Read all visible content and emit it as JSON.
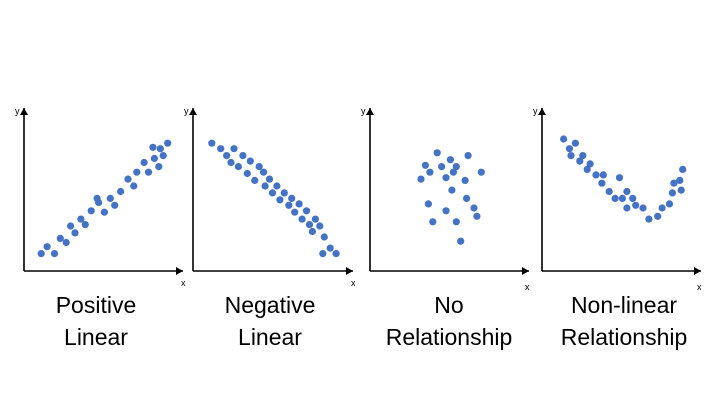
{
  "colors": {
    "point": "#4472C4",
    "axis": "#000000",
    "background": "#ffffff"
  },
  "chart_data": [
    {
      "type": "scatter",
      "title": "Positive Linear",
      "title_lines": [
        "Positive",
        "Linear"
      ],
      "xlabel": "x",
      "ylabel": "y",
      "grid": false,
      "xlim": [
        0,
        10
      ],
      "ylim": [
        0,
        10
      ],
      "points": [
        [
          0.9,
          0.9
        ],
        [
          1.3,
          1.4
        ],
        [
          1.8,
          0.9
        ],
        [
          2.2,
          2.0
        ],
        [
          2.6,
          1.7
        ],
        [
          2.9,
          2.9
        ],
        [
          3.2,
          2.4
        ],
        [
          3.6,
          3.4
        ],
        [
          3.9,
          3.0
        ],
        [
          4.3,
          4.0
        ],
        [
          4.7,
          4.9
        ],
        [
          4.8,
          4.6
        ],
        [
          5.2,
          3.9
        ],
        [
          5.6,
          4.9
        ],
        [
          5.9,
          4.4
        ],
        [
          6.3,
          5.4
        ],
        [
          6.8,
          6.3
        ],
        [
          7.2,
          5.8
        ],
        [
          7.4,
          6.8
        ],
        [
          7.9,
          7.5
        ],
        [
          8.2,
          6.8
        ],
        [
          8.6,
          7.8
        ],
        [
          8.9,
          7.2
        ],
        [
          8.5,
          8.6
        ],
        [
          9.0,
          8.5
        ],
        [
          9.2,
          8.0
        ],
        [
          9.5,
          8.9
        ]
      ]
    },
    {
      "type": "scatter",
      "title": "Negative Linear",
      "title_lines": [
        "Negative",
        "Linear"
      ],
      "xlabel": "x",
      "ylabel": "y",
      "grid": false,
      "xlim": [
        0,
        10
      ],
      "ylim": [
        0,
        10
      ],
      "points": [
        [
          1.0,
          8.9
        ],
        [
          1.6,
          8.5
        ],
        [
          2.0,
          8.0
        ],
        [
          2.3,
          7.5
        ],
        [
          2.5,
          8.5
        ],
        [
          2.8,
          7.2
        ],
        [
          3.1,
          8.0
        ],
        [
          3.4,
          6.7
        ],
        [
          3.6,
          7.6
        ],
        [
          3.9,
          6.2
        ],
        [
          4.2,
          7.2
        ],
        [
          4.5,
          6.8
        ],
        [
          4.6,
          5.8
        ],
        [
          4.9,
          6.3
        ],
        [
          5.1,
          5.3
        ],
        [
          5.4,
          5.8
        ],
        [
          5.6,
          4.8
        ],
        [
          5.9,
          5.3
        ],
        [
          6.2,
          4.4
        ],
        [
          6.4,
          4.9
        ],
        [
          6.6,
          3.9
        ],
        [
          6.9,
          4.5
        ],
        [
          7.1,
          3.4
        ],
        [
          7.4,
          4.0
        ],
        [
          7.6,
          3.0
        ],
        [
          7.8,
          2.5
        ],
        [
          8.0,
          3.4
        ],
        [
          8.3,
          2.9
        ],
        [
          8.6,
          2.1
        ],
        [
          8.5,
          0.9
        ],
        [
          9.0,
          1.3
        ],
        [
          9.4,
          0.9
        ]
      ]
    },
    {
      "type": "scatter",
      "title": "No Relationship",
      "title_lines": [
        "No",
        "Relationship"
      ],
      "xlabel": "x",
      "ylabel": "y",
      "grid": false,
      "xlim": [
        0,
        10
      ],
      "ylim": [
        0,
        10
      ],
      "points": [
        [
          3.2,
          6.3
        ],
        [
          3.5,
          7.3
        ],
        [
          3.8,
          6.8
        ],
        [
          3.7,
          4.5
        ],
        [
          4.0,
          3.2
        ],
        [
          4.3,
          8.2
        ],
        [
          4.6,
          7.2
        ],
        [
          4.9,
          6.4
        ],
        [
          4.9,
          4.0
        ],
        [
          5.2,
          7.7
        ],
        [
          5.3,
          5.5
        ],
        [
          5.4,
          6.8
        ],
        [
          5.6,
          7.2
        ],
        [
          5.6,
          3.2
        ],
        [
          5.9,
          1.8
        ],
        [
          6.2,
          6.2
        ],
        [
          6.4,
          8.0
        ],
        [
          6.3,
          4.9
        ],
        [
          6.8,
          4.2
        ],
        [
          7.0,
          3.6
        ],
        [
          7.3,
          6.8
        ]
      ]
    },
    {
      "type": "scatter",
      "title": "Non-linear Relationship",
      "title_lines": [
        "Non-linear",
        "Relationship"
      ],
      "xlabel": "x",
      "ylabel": "y",
      "grid": false,
      "xlim": [
        0,
        10
      ],
      "ylim": [
        0,
        10
      ],
      "points": [
        [
          1.2,
          9.2
        ],
        [
          1.6,
          8.5
        ],
        [
          1.7,
          8.0
        ],
        [
          2.0,
          8.9
        ],
        [
          2.3,
          7.6
        ],
        [
          2.5,
          8.0
        ],
        [
          2.8,
          7.0
        ],
        [
          3.0,
          7.4
        ],
        [
          3.4,
          6.6
        ],
        [
          3.8,
          6.0
        ],
        [
          3.9,
          6.6
        ],
        [
          4.3,
          5.4
        ],
        [
          4.7,
          4.9
        ],
        [
          5.0,
          6.4
        ],
        [
          5.2,
          4.9
        ],
        [
          5.5,
          5.4
        ],
        [
          5.5,
          4.2
        ],
        [
          5.9,
          4.9
        ],
        [
          6.1,
          4.4
        ],
        [
          6.6,
          4.2
        ],
        [
          7.0,
          3.4
        ],
        [
          7.6,
          3.6
        ],
        [
          7.9,
          4.2
        ],
        [
          8.4,
          4.5
        ],
        [
          8.6,
          5.3
        ],
        [
          8.7,
          6.0
        ],
        [
          9.1,
          6.2
        ],
        [
          9.3,
          7.0
        ],
        [
          9.2,
          5.5
        ]
      ]
    }
  ]
}
